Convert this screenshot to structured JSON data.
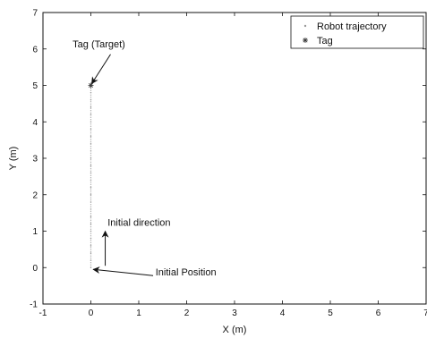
{
  "chart_data": {
    "type": "scatter",
    "xlabel": "X (m)",
    "ylabel": "Y (m)",
    "xlim": [
      -1,
      7
    ],
    "ylim": [
      -1,
      7
    ],
    "xticks": [
      "-1",
      "0",
      "1",
      "2",
      "3",
      "4",
      "5",
      "6",
      "7"
    ],
    "yticks": [
      "-1",
      "0",
      "1",
      "2",
      "3",
      "4",
      "5",
      "6",
      "7"
    ],
    "grid": false,
    "legend_position": "top-right",
    "series": [
      {
        "name": "Robot trajectory",
        "marker": "dot",
        "color": "#9a9a9a",
        "x": [
          0,
          0,
          0,
          0,
          0,
          0,
          0,
          0,
          0,
          0,
          0,
          0,
          0,
          0,
          0,
          0,
          0,
          0,
          0,
          0,
          0,
          0,
          0,
          0,
          0,
          0
        ],
        "y": [
          0,
          0.2,
          0.4,
          0.6,
          0.8,
          1.0,
          1.2,
          1.4,
          1.6,
          1.8,
          2.0,
          2.2,
          2.4,
          2.6,
          2.8,
          3.0,
          3.2,
          3.4,
          3.6,
          3.8,
          4.0,
          4.2,
          4.4,
          4.6,
          4.8,
          5.0
        ]
      },
      {
        "name": "Tag",
        "marker": "asterisk",
        "color": "#333333",
        "x": [
          0
        ],
        "y": [
          5
        ]
      }
    ],
    "annotations": [
      {
        "id": "tag-target",
        "text": "Tag (Target)",
        "arrow_to": [
          0,
          5
        ],
        "text_at": [
          0,
          6.0
        ]
      },
      {
        "id": "initial-direction",
        "text": "Initial direction",
        "arrow_from": [
          0.3,
          0.05
        ],
        "arrow_to": [
          0.3,
          1.0
        ],
        "text_at": [
          0.35,
          1.15
        ]
      },
      {
        "id": "initial-position",
        "text": "Initial Position",
        "arrow_from": [
          1.3,
          -0.22
        ],
        "arrow_to": [
          0.05,
          -0.05
        ],
        "text_at": [
          1.35,
          -0.22
        ]
      }
    ]
  }
}
